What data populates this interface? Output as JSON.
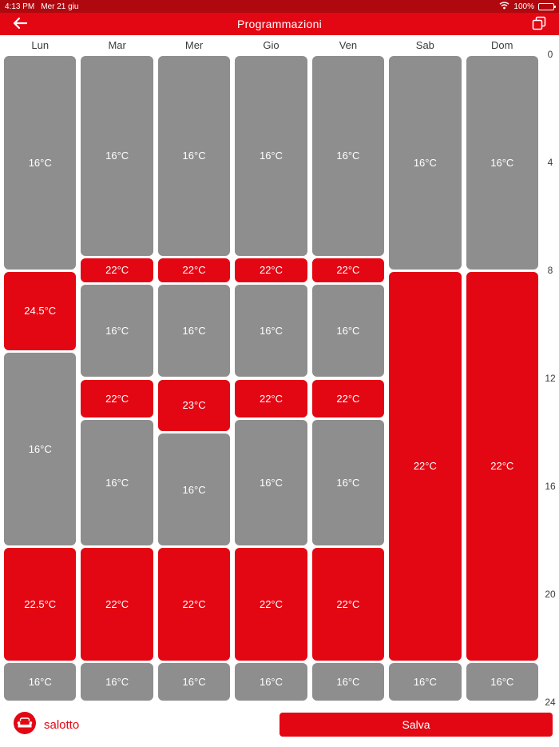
{
  "status_bar": {
    "time": "4:13 PM",
    "date": "Mer 21 giu",
    "battery": "100%"
  },
  "header": {
    "title": "Programmazioni"
  },
  "days": [
    "Lun",
    "Mar",
    "Mer",
    "Gio",
    "Ven",
    "Sab",
    "Dom"
  ],
  "hour_labels": [
    0,
    4,
    8,
    12,
    16,
    20,
    24
  ],
  "colors": {
    "red": "#e30613",
    "gray": "#8e8e8e",
    "status_red": "#b0080f",
    "text_dark": "#3c3c3b"
  },
  "footer": {
    "room_label": "salotto",
    "save_label": "Salva"
  },
  "schedule": [
    {
      "day": "Lun",
      "segments": [
        {
          "start": 0,
          "end": 8,
          "temp": "16°C",
          "color": "gray"
        },
        {
          "start": 8,
          "end": 11,
          "temp": "24.5°C",
          "color": "red"
        },
        {
          "start": 11,
          "end": 18.25,
          "temp": "16°C",
          "color": "gray"
        },
        {
          "start": 18.25,
          "end": 22.5,
          "temp": "22.5°C",
          "color": "red"
        },
        {
          "start": 22.5,
          "end": 24,
          "temp": "16°C",
          "color": "gray"
        }
      ]
    },
    {
      "day": "Mar",
      "segments": [
        {
          "start": 0,
          "end": 7.5,
          "temp": "16°C",
          "color": "gray"
        },
        {
          "start": 7.5,
          "end": 8.5,
          "temp": "22°C",
          "color": "red"
        },
        {
          "start": 8.5,
          "end": 12,
          "temp": "16°C",
          "color": "gray"
        },
        {
          "start": 12,
          "end": 13.5,
          "temp": "22°C",
          "color": "red"
        },
        {
          "start": 13.5,
          "end": 18.25,
          "temp": "16°C",
          "color": "gray"
        },
        {
          "start": 18.25,
          "end": 22.5,
          "temp": "22°C",
          "color": "red"
        },
        {
          "start": 22.5,
          "end": 24,
          "temp": "16°C",
          "color": "gray"
        }
      ]
    },
    {
      "day": "Mer",
      "segments": [
        {
          "start": 0,
          "end": 7.5,
          "temp": "16°C",
          "color": "gray"
        },
        {
          "start": 7.5,
          "end": 8.5,
          "temp": "22°C",
          "color": "red"
        },
        {
          "start": 8.5,
          "end": 12,
          "temp": "16°C",
          "color": "gray"
        },
        {
          "start": 12,
          "end": 14,
          "temp": "23°C",
          "color": "red"
        },
        {
          "start": 14,
          "end": 18.25,
          "temp": "16°C",
          "color": "gray"
        },
        {
          "start": 18.25,
          "end": 22.5,
          "temp": "22°C",
          "color": "red"
        },
        {
          "start": 22.5,
          "end": 24,
          "temp": "16°C",
          "color": "gray"
        }
      ]
    },
    {
      "day": "Gio",
      "segments": [
        {
          "start": 0,
          "end": 7.5,
          "temp": "16°C",
          "color": "gray"
        },
        {
          "start": 7.5,
          "end": 8.5,
          "temp": "22°C",
          "color": "red"
        },
        {
          "start": 8.5,
          "end": 12,
          "temp": "16°C",
          "color": "gray"
        },
        {
          "start": 12,
          "end": 13.5,
          "temp": "22°C",
          "color": "red"
        },
        {
          "start": 13.5,
          "end": 18.25,
          "temp": "16°C",
          "color": "gray"
        },
        {
          "start": 18.25,
          "end": 22.5,
          "temp": "22°C",
          "color": "red"
        },
        {
          "start": 22.5,
          "end": 24,
          "temp": "16°C",
          "color": "gray"
        }
      ]
    },
    {
      "day": "Ven",
      "segments": [
        {
          "start": 0,
          "end": 7.5,
          "temp": "16°C",
          "color": "gray"
        },
        {
          "start": 7.5,
          "end": 8.5,
          "temp": "22°C",
          "color": "red"
        },
        {
          "start": 8.5,
          "end": 12,
          "temp": "16°C",
          "color": "gray"
        },
        {
          "start": 12,
          "end": 13.5,
          "temp": "22°C",
          "color": "red"
        },
        {
          "start": 13.5,
          "end": 18.25,
          "temp": "16°C",
          "color": "gray"
        },
        {
          "start": 18.25,
          "end": 22.5,
          "temp": "22°C",
          "color": "red"
        },
        {
          "start": 22.5,
          "end": 24,
          "temp": "16°C",
          "color": "gray"
        }
      ]
    },
    {
      "day": "Sab",
      "segments": [
        {
          "start": 0,
          "end": 8,
          "temp": "16°C",
          "color": "gray"
        },
        {
          "start": 8,
          "end": 22.5,
          "temp": "22°C",
          "color": "red"
        },
        {
          "start": 22.5,
          "end": 24,
          "temp": "16°C",
          "color": "gray"
        }
      ]
    },
    {
      "day": "Dom",
      "segments": [
        {
          "start": 0,
          "end": 8,
          "temp": "16°C",
          "color": "gray"
        },
        {
          "start": 8,
          "end": 22.5,
          "temp": "22°C",
          "color": "red"
        },
        {
          "start": 22.5,
          "end": 24,
          "temp": "16°C",
          "color": "gray"
        }
      ]
    }
  ]
}
